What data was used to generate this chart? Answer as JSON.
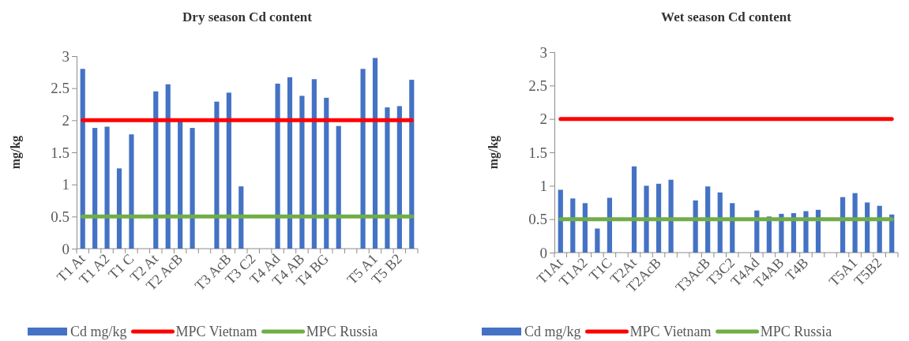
{
  "chart_data": [
    {
      "type": "bar",
      "title": "Dry season Cd content",
      "ylabel": "mg/kg",
      "categories": [
        "T1 At",
        null,
        "T1 A2",
        null,
        "T1 C",
        null,
        "T2 At",
        null,
        "T2 AcB",
        null,
        null,
        null,
        "T3 AcB",
        null,
        "T3 C2",
        null,
        "T4 Ad",
        null,
        "T4 AB",
        null,
        "T4 BG",
        null,
        null,
        null,
        "T5 A1",
        null,
        "T5 B2",
        null
      ],
      "series": [
        {
          "name": "Cd mg/kg",
          "color": "#4472c4",
          "values": [
            2.8,
            1.88,
            1.9,
            1.25,
            1.78,
            null,
            2.45,
            2.56,
            1.98,
            1.88,
            null,
            2.29,
            2.43,
            0.97,
            null,
            null,
            2.57,
            2.67,
            2.38,
            2.64,
            2.35,
            1.91,
            null,
            2.8,
            2.97,
            2.2,
            2.22,
            2.63
          ]
        },
        {
          "name": "MPC Vietnam",
          "type": "line",
          "color": "#ff0000",
          "values": [
            2,
            2,
            2,
            2,
            2,
            2,
            2,
            2,
            2,
            2,
            2,
            2,
            2,
            2,
            2,
            2,
            2,
            2,
            2,
            2,
            2,
            2,
            2,
            2,
            2,
            2,
            2,
            2
          ]
        },
        {
          "name": "MPC Russia",
          "type": "line",
          "color": "#70ad47",
          "values": [
            0.5,
            0.5,
            0.5,
            0.5,
            0.5,
            0.5,
            0.5,
            0.5,
            0.5,
            0.5,
            0.5,
            0.5,
            0.5,
            0.5,
            0.5,
            0.5,
            0.5,
            0.5,
            0.5,
            0.5,
            0.5,
            0.5,
            0.5,
            0.5,
            0.5,
            0.5,
            0.5,
            0.5
          ]
        }
      ],
      "ylim": [
        0,
        3
      ],
      "yticks": [
        0,
        0.5,
        1,
        1.5,
        2,
        2.5,
        3
      ],
      "legend": "bottom"
    },
    {
      "type": "bar",
      "title": "Wet season Cd content",
      "ylabel": "mg/kg",
      "categories": [
        "T1At",
        null,
        "T1A2",
        null,
        "T1C",
        null,
        "T2At",
        null,
        "T2AcB",
        null,
        null,
        null,
        "T3AcB",
        null,
        "T3C2",
        null,
        "T4Ad",
        null,
        "T4AB",
        null,
        "T4B",
        null,
        null,
        null,
        "T5A1",
        null,
        "T5B2",
        null
      ],
      "series": [
        {
          "name": "Cd mg/kg",
          "color": "#4472c4",
          "values": [
            0.94,
            0.81,
            0.74,
            0.36,
            0.82,
            null,
            1.29,
            1.0,
            1.03,
            1.09,
            null,
            0.78,
            0.99,
            0.9,
            0.74,
            null,
            0.63,
            0.54,
            0.58,
            0.59,
            0.62,
            0.64,
            null,
            0.83,
            0.89,
            0.75,
            0.7,
            0.57
          ]
        },
        {
          "name": "MPC Vietnam",
          "type": "line",
          "color": "#ff0000",
          "values": [
            2,
            2,
            2,
            2,
            2,
            2,
            2,
            2,
            2,
            2,
            2,
            2,
            2,
            2,
            2,
            2,
            2,
            2,
            2,
            2,
            2,
            2,
            2,
            2,
            2,
            2,
            2,
            2
          ]
        },
        {
          "name": "MPC Russia",
          "type": "line",
          "color": "#70ad47",
          "values": [
            0.5,
            0.5,
            0.5,
            0.5,
            0.5,
            0.5,
            0.5,
            0.5,
            0.5,
            0.5,
            0.5,
            0.5,
            0.5,
            0.5,
            0.5,
            0.5,
            0.5,
            0.5,
            0.5,
            0.5,
            0.5,
            0.5,
            0.5,
            0.5,
            0.5,
            0.5,
            0.5,
            0.5
          ]
        }
      ],
      "ylim": [
        0,
        3
      ],
      "yticks": [
        0,
        0.5,
        1,
        1.5,
        2,
        2.5,
        3
      ],
      "legend": "bottom"
    }
  ]
}
